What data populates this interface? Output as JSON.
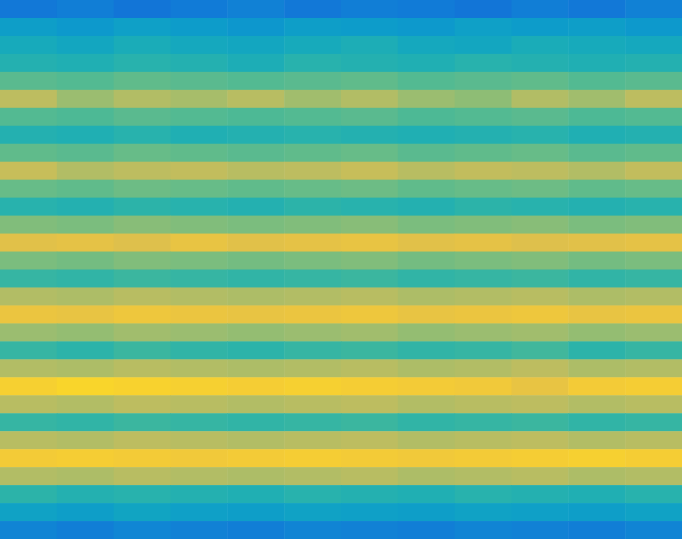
{
  "chart_data": {
    "type": "heatmap",
    "tick_labels": false,
    "zlim": [
      0,
      100
    ],
    "cells": [
      [
        22,
        24,
        21,
        23,
        25,
        22,
        24,
        23,
        21,
        24,
        22,
        25
      ],
      [
        36,
        34,
        37,
        35,
        33,
        36,
        35,
        34,
        37,
        35,
        36,
        34
      ],
      [
        42,
        40,
        43,
        41,
        40,
        42,
        44,
        41,
        40,
        43,
        42,
        41
      ],
      [
        46,
        45,
        47,
        46,
        44,
        47,
        46,
        45,
        47,
        46,
        45,
        46
      ],
      [
        56,
        55,
        57,
        56,
        55,
        56,
        57,
        55,
        56,
        57,
        55,
        56
      ],
      [
        72,
        66,
        70,
        68,
        71,
        67,
        70,
        66,
        64,
        70,
        67,
        72
      ],
      [
        55,
        54,
        56,
        55,
        54,
        55,
        56,
        54,
        55,
        56,
        54,
        55
      ],
      [
        46,
        45,
        47,
        45,
        46,
        47,
        46,
        45,
        46,
        47,
        45,
        46
      ],
      [
        57,
        56,
        58,
        57,
        56,
        57,
        58,
        56,
        57,
        58,
        56,
        57
      ],
      [
        74,
        70,
        72,
        73,
        71,
        72,
        74,
        71,
        73,
        72,
        70,
        73
      ],
      [
        58,
        57,
        59,
        58,
        57,
        58,
        59,
        57,
        58,
        59,
        57,
        58
      ],
      [
        47,
        46,
        48,
        47,
        46,
        48,
        47,
        46,
        48,
        47,
        46,
        47
      ],
      [
        62,
        61,
        63,
        62,
        61,
        62,
        63,
        61,
        62,
        63,
        61,
        62
      ],
      [
        80,
        81,
        79,
        82,
        80,
        81,
        82,
        80,
        81,
        79,
        80,
        81
      ],
      [
        61,
        60,
        62,
        61,
        60,
        61,
        62,
        60,
        61,
        62,
        60,
        61
      ],
      [
        50,
        49,
        51,
        50,
        49,
        50,
        51,
        49,
        50,
        51,
        49,
        50
      ],
      [
        70,
        69,
        71,
        70,
        69,
        70,
        71,
        69,
        70,
        71,
        69,
        70
      ],
      [
        83,
        82,
        84,
        83,
        82,
        83,
        84,
        82,
        83,
        84,
        82,
        83
      ],
      [
        66,
        65,
        67,
        66,
        65,
        66,
        67,
        65,
        66,
        67,
        65,
        66
      ],
      [
        50,
        48,
        51,
        49,
        48,
        50,
        51,
        49,
        50,
        52,
        48,
        50
      ],
      [
        70,
        69,
        71,
        70,
        69,
        70,
        71,
        69,
        70,
        72,
        69,
        70
      ],
      [
        88,
        90,
        89,
        88,
        87,
        88,
        87,
        86,
        85,
        82,
        86,
        87
      ],
      [
        71,
        70,
        72,
        71,
        70,
        71,
        72,
        70,
        71,
        72,
        70,
        71
      ],
      [
        50,
        49,
        51,
        50,
        49,
        50,
        51,
        49,
        50,
        51,
        49,
        50
      ],
      [
        71,
        70,
        72,
        71,
        70,
        71,
        72,
        70,
        71,
        72,
        70,
        71
      ],
      [
        86,
        87,
        86,
        85,
        86,
        87,
        86,
        85,
        86,
        87,
        88,
        87
      ],
      [
        70,
        69,
        71,
        70,
        69,
        70,
        71,
        69,
        70,
        71,
        69,
        70
      ],
      [
        48,
        46,
        47,
        46,
        45,
        47,
        46,
        45,
        47,
        46,
        45,
        47
      ],
      [
        38,
        36,
        39,
        37,
        36,
        38,
        37,
        36,
        38,
        37,
        36,
        38
      ],
      [
        26,
        24,
        27,
        25,
        24,
        26,
        25,
        24,
        26,
        25,
        24,
        26
      ]
    ]
  }
}
